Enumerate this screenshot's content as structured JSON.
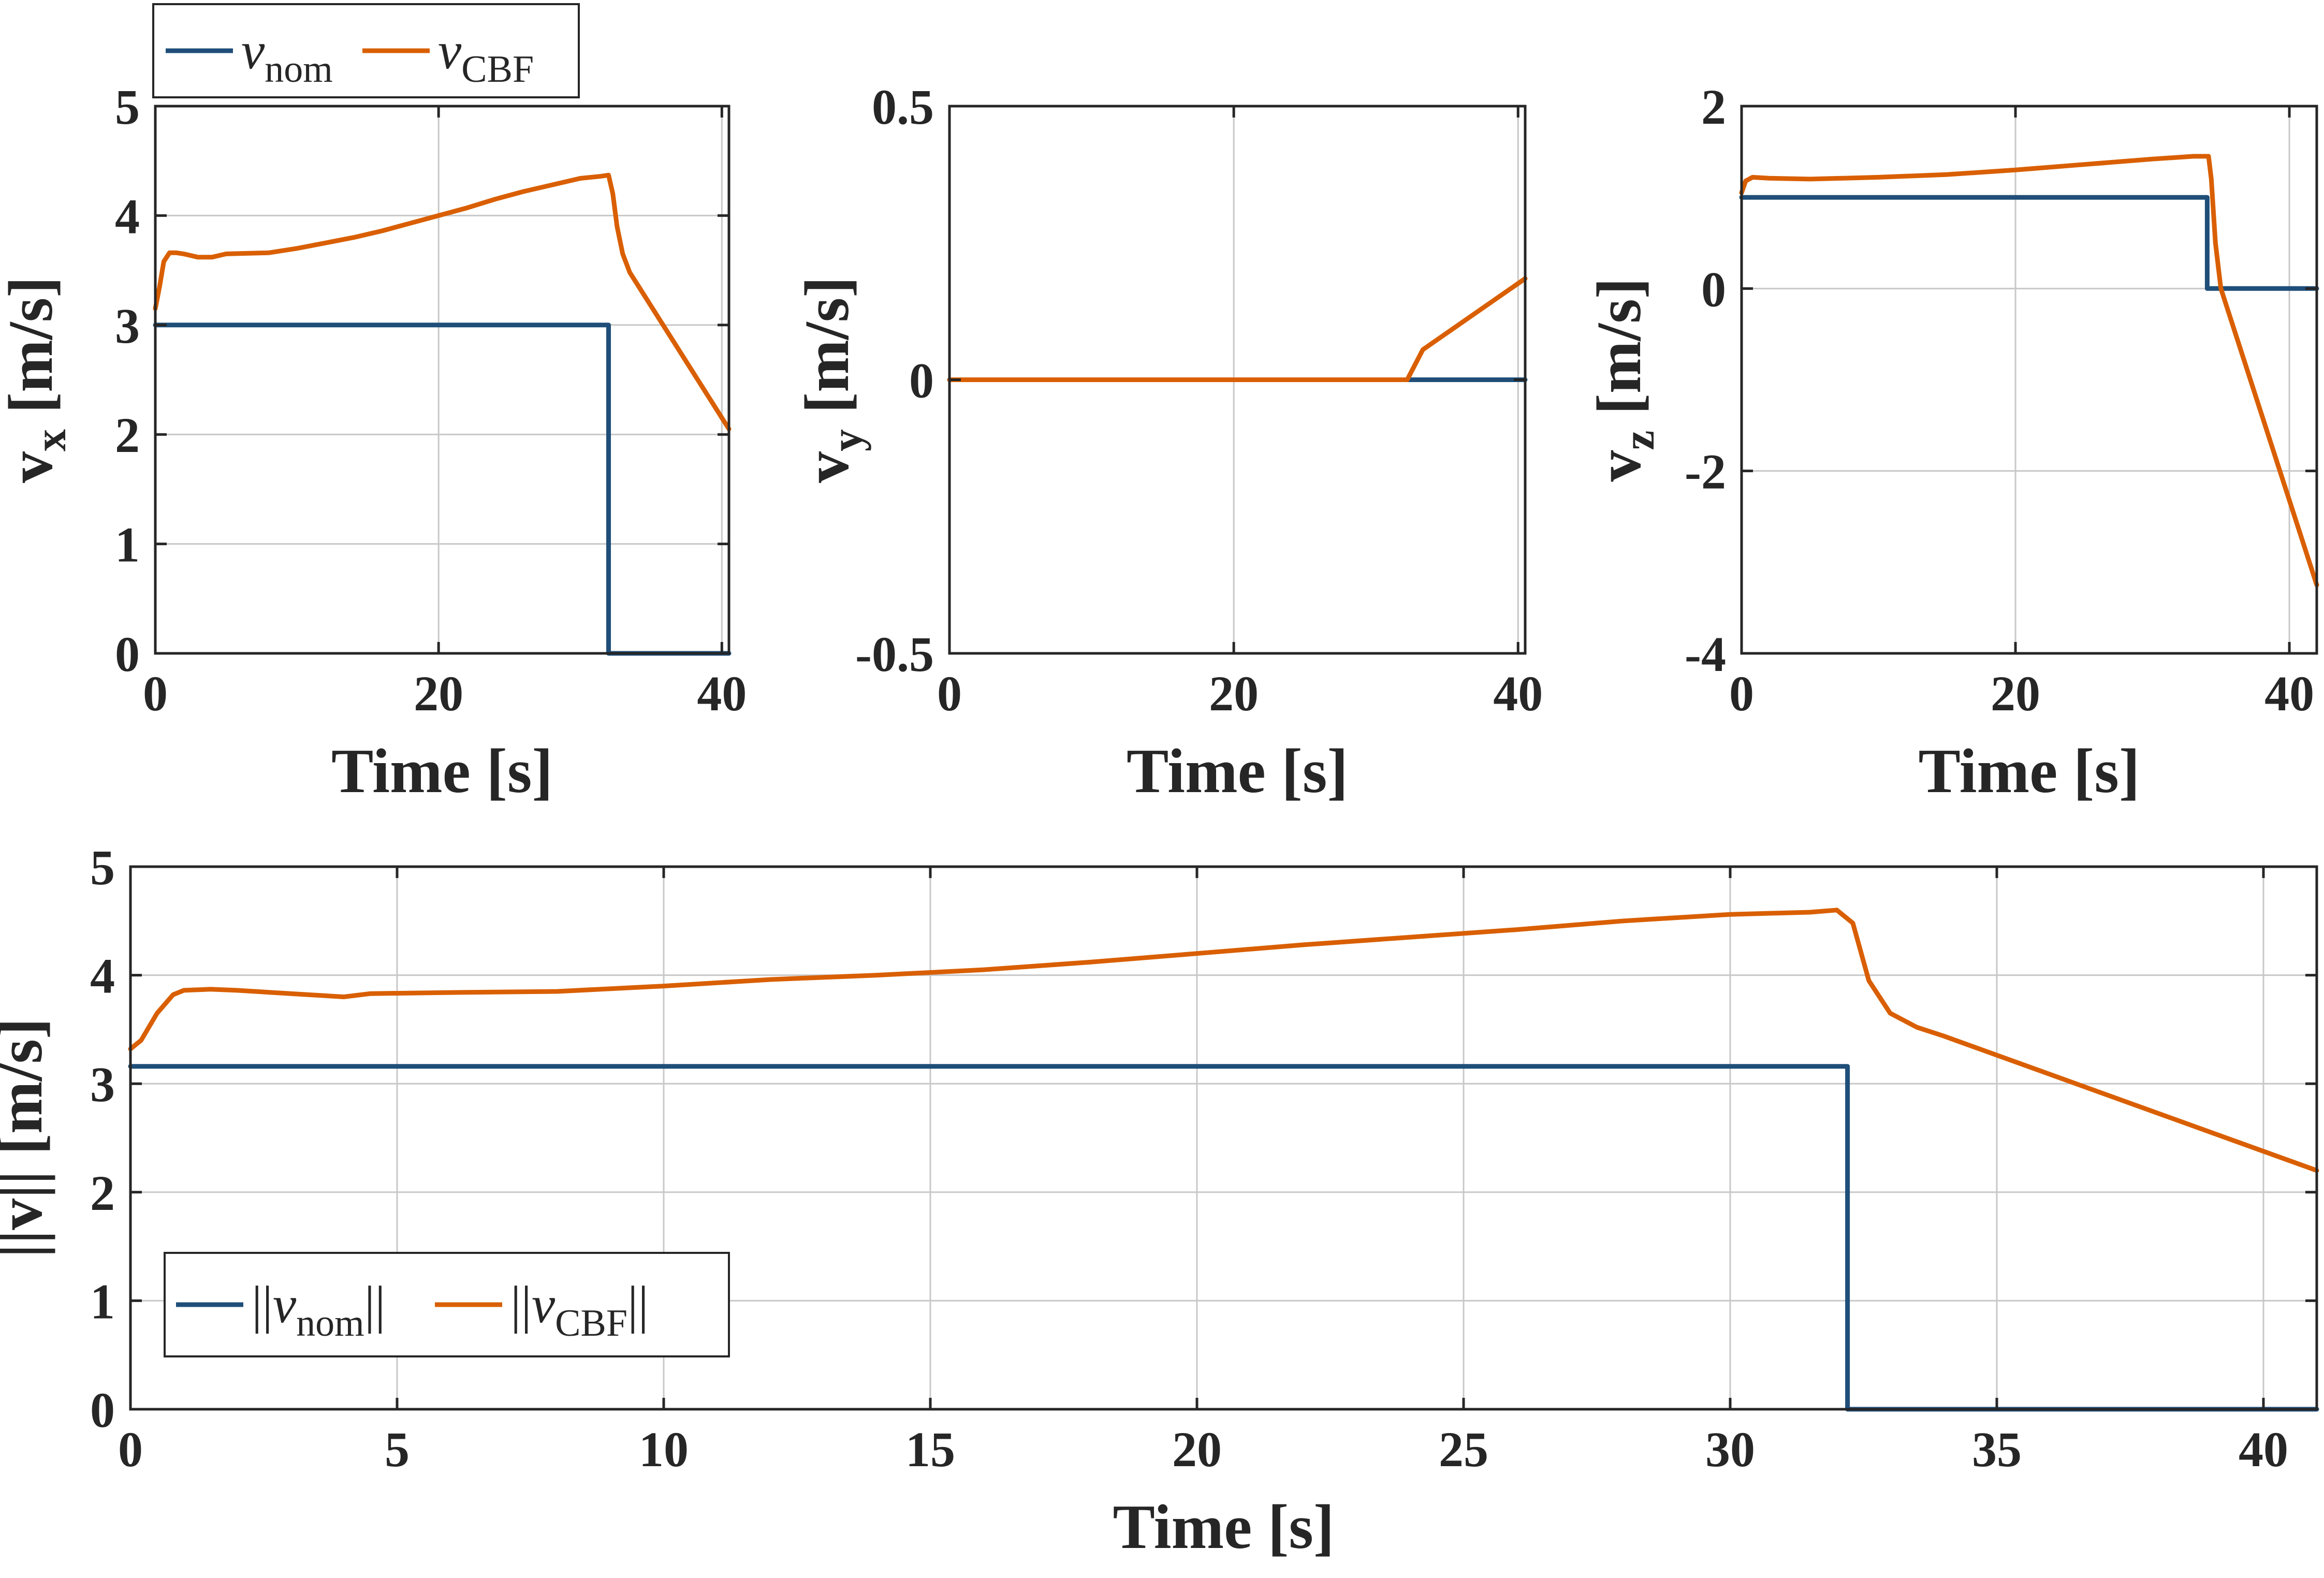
{
  "colors": {
    "nominal": "#1f4e79",
    "cbf": "#d95f02"
  },
  "legend_top": {
    "entries": [
      "v_nom",
      "v_CBF"
    ],
    "placement": "top-left, above first subplot"
  },
  "legend_bottom": {
    "entries": [
      "||v_nom||",
      "||v_CBF||"
    ],
    "placement": "bottom-left"
  },
  "chart_data": [
    {
      "type": "line",
      "xlabel": "Time [s]",
      "ylabel": "vx [m/s]",
      "xlim": [
        0,
        40.5
      ],
      "ylim": [
        0,
        5
      ],
      "xticks": [
        0,
        20,
        40
      ],
      "yticks": [
        0,
        1,
        2,
        3,
        4,
        5
      ],
      "grid": true,
      "series": [
        {
          "name": "v_nom",
          "color": "#1f4e79",
          "x": [
            0,
            32,
            32,
            40.5
          ],
          "y": [
            3,
            3,
            0,
            0
          ]
        },
        {
          "name": "v_CBF",
          "color": "#d95f02",
          "x": [
            0,
            0.3,
            0.6,
            1,
            1.5,
            2,
            3,
            4,
            5,
            8,
            10,
            12,
            14,
            16,
            18,
            20,
            22,
            24,
            26,
            28,
            30,
            31.5,
            32,
            32.3,
            32.6,
            33,
            33.5,
            40.5
          ],
          "y": [
            3.15,
            3.35,
            3.58,
            3.66,
            3.66,
            3.65,
            3.62,
            3.62,
            3.65,
            3.66,
            3.7,
            3.75,
            3.8,
            3.86,
            3.93,
            4.0,
            4.07,
            4.15,
            4.22,
            4.28,
            4.34,
            4.36,
            4.37,
            4.2,
            3.9,
            3.65,
            3.48,
            2.05
          ]
        }
      ]
    },
    {
      "type": "line",
      "xlabel": "Time [s]",
      "ylabel": "vy [m/s]",
      "xlim": [
        0,
        40.5
      ],
      "ylim": [
        -0.5,
        0.5
      ],
      "xticks": [
        0,
        20,
        40
      ],
      "yticks": [
        -0.5,
        0,
        0.5
      ],
      "grid": true,
      "series": [
        {
          "name": "v_nom",
          "color": "#1f4e79",
          "x": [
            0,
            40.5
          ],
          "y": [
            0,
            0
          ]
        },
        {
          "name": "v_CBF",
          "color": "#d95f02",
          "x": [
            0,
            32.2,
            32.8,
            33.3,
            40.5
          ],
          "y": [
            0,
            0,
            0.03,
            0.055,
            0.185
          ]
        }
      ]
    },
    {
      "type": "line",
      "xlabel": "Time [s]",
      "ylabel": "vz [m/s]",
      "xlim": [
        0,
        42
      ],
      "ylim": [
        -4,
        2
      ],
      "xticks": [
        0,
        20,
        40
      ],
      "yticks": [
        -4,
        -2,
        0,
        2
      ],
      "grid": true,
      "series": [
        {
          "name": "v_nom",
          "color": "#1f4e79",
          "x": [
            0,
            34,
            34,
            42
          ],
          "y": [
            1,
            1,
            0,
            0
          ]
        },
        {
          "name": "v_CBF",
          "color": "#d95f02",
          "x": [
            0,
            0.3,
            0.8,
            2,
            5,
            10,
            15,
            20,
            25,
            30,
            33,
            34.1,
            34.3,
            34.6,
            35,
            42
          ],
          "y": [
            1.05,
            1.18,
            1.22,
            1.21,
            1.2,
            1.22,
            1.25,
            1.3,
            1.36,
            1.42,
            1.45,
            1.45,
            1.2,
            0.5,
            0,
            -3.25
          ]
        }
      ]
    },
    {
      "type": "line",
      "xlabel": "Time [s]",
      "ylabel": "||v|| [m/s]",
      "xlim": [
        0,
        41
      ],
      "ylim": [
        0,
        5
      ],
      "xticks": [
        0,
        5,
        10,
        15,
        20,
        25,
        30,
        35,
        40
      ],
      "yticks": [
        0,
        1,
        2,
        3,
        4,
        5
      ],
      "grid": true,
      "series": [
        {
          "name": "||v_nom||",
          "color": "#1f4e79",
          "x": [
            0,
            32.2,
            32.2,
            41
          ],
          "y": [
            3.16,
            3.16,
            0,
            0
          ]
        },
        {
          "name": "||v_CBF||",
          "color": "#d95f02",
          "x": [
            0,
            0.2,
            0.5,
            0.8,
            1,
            1.5,
            2,
            3,
            4,
            4.5,
            6,
            8,
            10,
            12,
            14,
            16,
            18,
            20,
            22,
            24,
            26,
            28,
            30,
            31.5,
            32,
            32.3,
            32.6,
            33,
            33.5,
            34,
            41
          ],
          "y": [
            3.32,
            3.4,
            3.65,
            3.82,
            3.86,
            3.87,
            3.86,
            3.83,
            3.8,
            3.83,
            3.84,
            3.85,
            3.9,
            3.96,
            4.0,
            4.05,
            4.12,
            4.2,
            4.28,
            4.35,
            4.42,
            4.5,
            4.56,
            4.58,
            4.6,
            4.48,
            3.95,
            3.65,
            3.52,
            3.44,
            2.2
          ]
        }
      ]
    }
  ]
}
